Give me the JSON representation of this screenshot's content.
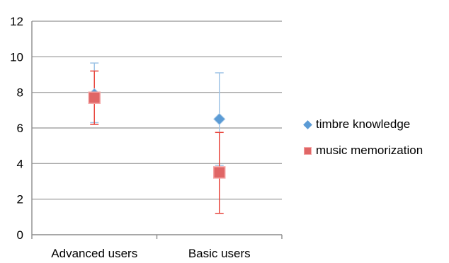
{
  "chart_data": {
    "type": "scatter",
    "categories": [
      "Advanced users",
      "Basic users"
    ],
    "series": [
      {
        "name": "timbre knowledge",
        "color": "#5b9bd5",
        "marker": "diamond",
        "values": [
          7.9,
          6.5
        ],
        "error_low": [
          6.3,
          3.9
        ],
        "error_high": [
          9.65,
          9.1
        ]
      },
      {
        "name": "music memorization",
        "color": "#e06666",
        "marker": "square",
        "values": [
          7.7,
          3.5
        ],
        "error_low": [
          6.2,
          1.2
        ],
        "error_high": [
          9.2,
          5.75
        ]
      }
    ],
    "ylim": [
      0,
      12
    ],
    "yticks": [
      "0",
      "2",
      "4",
      "6",
      "8",
      "10",
      "12"
    ],
    "grid": true,
    "legend_position": "right"
  }
}
